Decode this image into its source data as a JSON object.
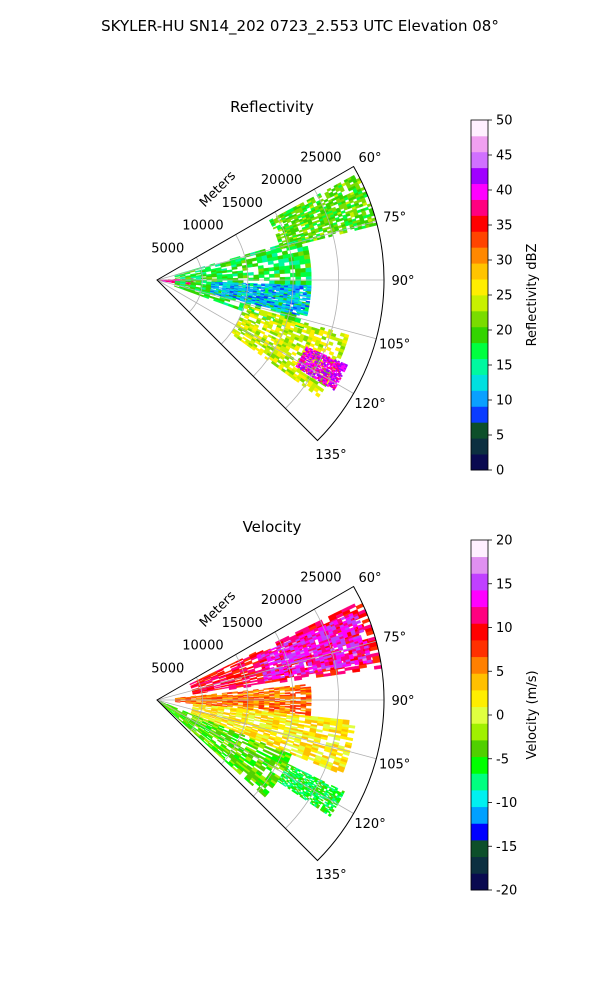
{
  "suptitle": "SKYLER-HU  SN14_202  0723_2.553 UTC Elevation 08°",
  "panels": [
    {
      "title": "Reflectivity",
      "range_label": "Meters",
      "range_ticks": [
        "5000",
        "10000",
        "15000",
        "20000",
        "25000"
      ],
      "azimuth_ticks": [
        "60°",
        "75°",
        "90°",
        "105°",
        "120°",
        "135°"
      ],
      "colorbar": {
        "label": "Reflectivity dBZ",
        "min": 0,
        "max": 50,
        "ticks": [
          "0",
          "5",
          "10",
          "15",
          "20",
          "25",
          "30",
          "35",
          "40",
          "45",
          "50"
        ],
        "stops": [
          "#0a0a50",
          "#0c2f40",
          "#0d4f2a",
          "#0a3cff",
          "#0aa0ff",
          "#00e0e0",
          "#00f8a0",
          "#00ff40",
          "#33d400",
          "#7adc00",
          "#c8f000",
          "#ffee00",
          "#ffc400",
          "#ff8800",
          "#ff4400",
          "#ff0000",
          "#ff0080",
          "#ff00ff",
          "#a000ff",
          "#d070ff",
          "#f0a0f0",
          "#fff0ff"
        ]
      }
    },
    {
      "title": "Velocity",
      "range_label": "Meters",
      "range_ticks": [
        "5000",
        "10000",
        "15000",
        "20000",
        "25000"
      ],
      "azimuth_ticks": [
        "60°",
        "75°",
        "90°",
        "105°",
        "120°",
        "135°"
      ],
      "colorbar": {
        "label": "Velocity (m/s)",
        "min": -20,
        "max": 20,
        "ticks": [
          "-20",
          "-15",
          "-10",
          "-5",
          "0",
          "5",
          "10",
          "15",
          "20"
        ],
        "stops": [
          "#0a0a50",
          "#0c2f40",
          "#0d4f2a",
          "#0000ff",
          "#00a0ff",
          "#00f0f0",
          "#00ff80",
          "#00ff00",
          "#50d000",
          "#a0f000",
          "#e0ff40",
          "#ffee00",
          "#ffc000",
          "#ff8000",
          "#ff3000",
          "#ff0000",
          "#ff0080",
          "#ff00ff",
          "#c040ff",
          "#e090f0",
          "#fff0ff"
        ]
      }
    }
  ],
  "chart_data": [
    {
      "type": "heatmap",
      "projection": "polar-sector",
      "title": "Reflectivity",
      "theta_range_deg": [
        60,
        135
      ],
      "r_range": [
        0,
        25000
      ],
      "value_range": [
        0,
        50
      ],
      "grid": true,
      "echo_regions": [
        {
          "az": [
            88,
            100
          ],
          "r": [
            0,
            4000
          ],
          "value": 38
        },
        {
          "az": [
            74,
            110
          ],
          "r": [
            2000,
            17000
          ],
          "value": 18
        },
        {
          "az": [
            92,
            104
          ],
          "r": [
            6000,
            17000
          ],
          "value": 11
        },
        {
          "az": [
            62,
            76
          ],
          "r": [
            14000,
            25000
          ],
          "value": 20
        },
        {
          "az": [
            106,
            126
          ],
          "r": [
            10000,
            22000
          ],
          "value": 24
        },
        {
          "az": [
            114,
            122
          ],
          "r": [
            18000,
            23000
          ],
          "value": 40
        }
      ]
    },
    {
      "type": "heatmap",
      "projection": "polar-sector",
      "title": "Velocity",
      "theta_range_deg": [
        60,
        135
      ],
      "r_range": [
        0,
        25000
      ],
      "value_range": [
        -20,
        20
      ],
      "grid": true,
      "echo_regions": [
        {
          "az": [
            64,
            82
          ],
          "r": [
            4000,
            25000
          ],
          "value": 10
        },
        {
          "az": [
            66,
            80
          ],
          "r": [
            12000,
            24000
          ],
          "value": 14
        },
        {
          "az": [
            84,
            96
          ],
          "r": [
            2000,
            17000
          ],
          "value": 6
        },
        {
          "az": [
            96,
            112
          ],
          "r": [
            4000,
            22000
          ],
          "value": 2
        },
        {
          "az": [
            112,
            132
          ],
          "r": [
            0,
            16000
          ],
          "value": -4
        },
        {
          "az": [
            116,
            124
          ],
          "r": [
            16000,
            23000
          ],
          "value": -6
        }
      ]
    }
  ]
}
